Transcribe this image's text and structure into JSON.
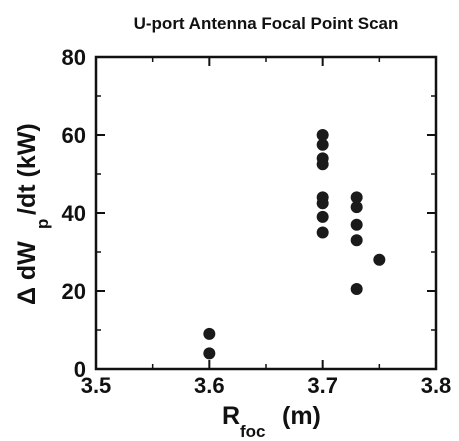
{
  "chart_data": {
    "type": "scatter",
    "title": "U-port Antenna Focal Point Scan",
    "xlabel": {
      "main": "R",
      "sub": "foc",
      "unit": "(m)"
    },
    "ylabel": {
      "prefix": "Δ dW",
      "sub": "p",
      "suffix": "/dt (kW)"
    },
    "xlim": [
      3.5,
      3.8
    ],
    "ylim": [
      0,
      80
    ],
    "xticks": [
      "3.5",
      "3.6",
      "3.7",
      "3.8"
    ],
    "yticks": [
      "0",
      "20",
      "40",
      "60",
      "80"
    ],
    "grid": false,
    "marker_color": "#1a1a1a",
    "points": [
      {
        "x": 3.6,
        "y": 9
      },
      {
        "x": 3.6,
        "y": 4
      },
      {
        "x": 3.7,
        "y": 60
      },
      {
        "x": 3.7,
        "y": 57.5
      },
      {
        "x": 3.7,
        "y": 54
      },
      {
        "x": 3.7,
        "y": 52.5
      },
      {
        "x": 3.7,
        "y": 44
      },
      {
        "x": 3.7,
        "y": 42.5
      },
      {
        "x": 3.7,
        "y": 39
      },
      {
        "x": 3.7,
        "y": 35
      },
      {
        "x": 3.73,
        "y": 44
      },
      {
        "x": 3.73,
        "y": 41.5
      },
      {
        "x": 3.73,
        "y": 37
      },
      {
        "x": 3.73,
        "y": 33
      },
      {
        "x": 3.73,
        "y": 20.5
      },
      {
        "x": 3.75,
        "y": 28
      }
    ]
  }
}
